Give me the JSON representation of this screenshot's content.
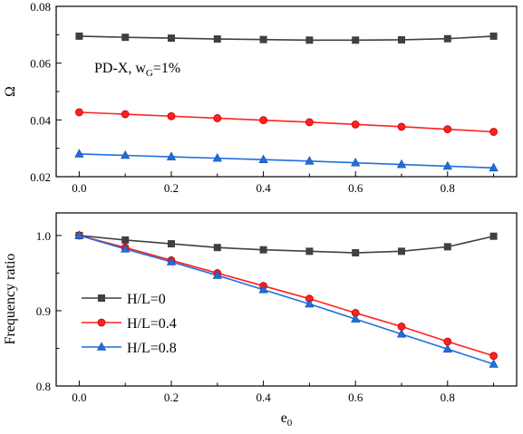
{
  "chart_data": [
    {
      "type": "line",
      "title": "",
      "xlabel": "",
      "ylabel": "Ω",
      "annotation": {
        "prefix": "PD-X, w",
        "sub": "G",
        "suffix": "=1%"
      },
      "xlim": [
        -0.05,
        0.95
      ],
      "ylim": [
        0.02,
        0.08
      ],
      "xticks": [
        0.0,
        0.2,
        0.4,
        0.6,
        0.8
      ],
      "xtick_labels": [
        "0.0",
        "0.2",
        "0.4",
        "0.6",
        "0.8"
      ],
      "yticks": [
        0.02,
        0.04,
        0.06,
        0.08
      ],
      "ytick_labels": [
        "0.02",
        "0.04",
        "0.06",
        "0.08"
      ],
      "x": [
        0.0,
        0.1,
        0.2,
        0.3,
        0.4,
        0.5,
        0.6,
        0.7,
        0.8,
        0.9
      ],
      "series": [
        {
          "name": "H/L=0",
          "color": "#404040",
          "marker": "square",
          "values": [
            0.0695,
            0.0691,
            0.0688,
            0.0685,
            0.0683,
            0.0681,
            0.0681,
            0.0682,
            0.0686,
            0.0695
          ]
        },
        {
          "name": "H/L=0.4",
          "color": "#ff2020",
          "marker": "circle",
          "values": [
            0.0427,
            0.042,
            0.0413,
            0.0406,
            0.0399,
            0.0392,
            0.0384,
            0.0376,
            0.0367,
            0.0358
          ]
        },
        {
          "name": "H/L=0.8",
          "color": "#1f6fe0",
          "marker": "triangle",
          "values": [
            0.028,
            0.0275,
            0.027,
            0.0265,
            0.026,
            0.0255,
            0.0249,
            0.0243,
            0.0237,
            0.0231
          ]
        }
      ]
    },
    {
      "type": "line",
      "title": "",
      "xlabel_main": "e",
      "xlabel_sub": "0",
      "ylabel": "Frequency ratio",
      "legend_position": "lower-left",
      "xlim": [
        -0.05,
        0.95
      ],
      "ylim": [
        0.8,
        1.03
      ],
      "xticks": [
        0.0,
        0.2,
        0.4,
        0.6,
        0.8
      ],
      "xtick_labels": [
        "0.0",
        "0.2",
        "0.4",
        "0.6",
        "0.8"
      ],
      "yticks": [
        0.8,
        0.9,
        1.0
      ],
      "ytick_labels": [
        "0.8",
        "0.9",
        "1.0"
      ],
      "x": [
        0.0,
        0.1,
        0.2,
        0.3,
        0.4,
        0.5,
        0.6,
        0.7,
        0.8,
        0.9
      ],
      "series": [
        {
          "name": "H/L=0",
          "color": "#404040",
          "marker": "square",
          "values": [
            1.0,
            0.994,
            0.989,
            0.984,
            0.981,
            0.979,
            0.977,
            0.979,
            0.985,
            0.999
          ]
        },
        {
          "name": "H/L=0.4",
          "color": "#ff2020",
          "marker": "circle",
          "values": [
            1.0,
            0.984,
            0.967,
            0.95,
            0.933,
            0.916,
            0.897,
            0.879,
            0.859,
            0.84
          ]
        },
        {
          "name": "H/L=0.8",
          "color": "#1f6fe0",
          "marker": "triangle",
          "values": [
            1.0,
            0.982,
            0.965,
            0.947,
            0.928,
            0.909,
            0.889,
            0.869,
            0.849,
            0.829
          ]
        }
      ]
    }
  ]
}
